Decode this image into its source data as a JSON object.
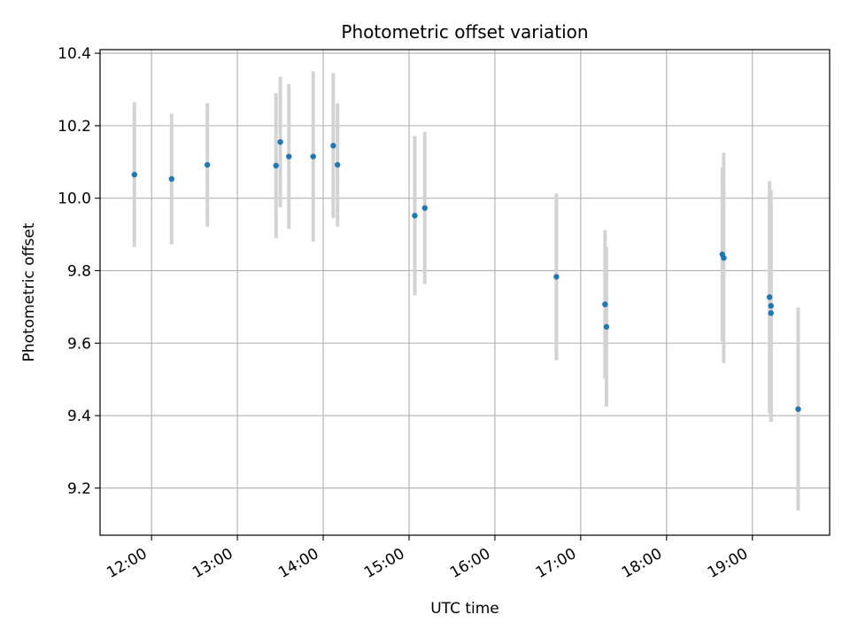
{
  "chart_data": {
    "type": "scatter",
    "title": "Photometric offset variation",
    "xlabel": "UTC time",
    "ylabel": "Photometric offset",
    "x_is_time": true,
    "xlim": [
      "11:24",
      "19:54"
    ],
    "ylim": [
      9.07,
      10.41
    ],
    "x_ticks": [
      "12:00",
      "13:00",
      "14:00",
      "15:00",
      "16:00",
      "17:00",
      "18:00",
      "19:00"
    ],
    "y_ticks": [
      9.2,
      9.4,
      9.6,
      9.8,
      10.0,
      10.2,
      10.4
    ],
    "grid": true,
    "colors": {
      "marker": "#1f77b4",
      "errorbar": "#d3d3d3",
      "grid": "#b0b0b0",
      "axes": "#000000"
    },
    "series": [
      {
        "points": [
          {
            "x": "11:48",
            "y": 10.065,
            "err": 0.2
          },
          {
            "x": "12:14",
            "y": 10.053,
            "err": 0.18
          },
          {
            "x": "12:39",
            "y": 10.092,
            "err": 0.17
          },
          {
            "x": "13:27",
            "y": 10.09,
            "err": 0.2
          },
          {
            "x": "13:30",
            "y": 10.155,
            "err": 0.18
          },
          {
            "x": "13:36",
            "y": 10.115,
            "err": 0.2
          },
          {
            "x": "13:53",
            "y": 10.115,
            "err": 0.235
          },
          {
            "x": "14:07",
            "y": 10.145,
            "err": 0.2
          },
          {
            "x": "14:10",
            "y": 10.092,
            "err": 0.17
          },
          {
            "x": "15:04",
            "y": 9.952,
            "err": 0.22
          },
          {
            "x": "15:11",
            "y": 9.973,
            "err": 0.21
          },
          {
            "x": "16:43",
            "y": 9.783,
            "err": 0.23
          },
          {
            "x": "17:17",
            "y": 9.707,
            "err": 0.205
          },
          {
            "x": "17:18",
            "y": 9.645,
            "err": 0.22
          },
          {
            "x": "18:39",
            "y": 9.845,
            "err": 0.24
          },
          {
            "x": "18:40",
            "y": 9.835,
            "err": 0.29
          },
          {
            "x": "19:12",
            "y": 9.727,
            "err": 0.32
          },
          {
            "x": "19:13",
            "y": 9.703,
            "err": 0.32
          },
          {
            "x": "19:13",
            "y": 9.683,
            "err": 0.3
          },
          {
            "x": "19:32",
            "y": 9.418,
            "err": 0.28
          }
        ]
      }
    ]
  }
}
